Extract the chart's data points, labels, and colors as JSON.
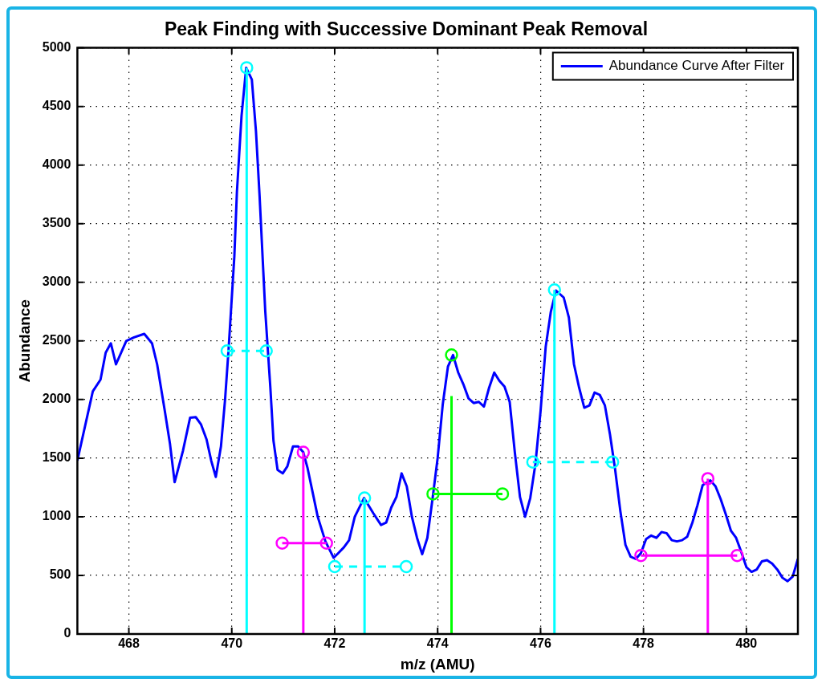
{
  "chart_data": {
    "type": "line",
    "title": "Peak Finding with Successive Dominant Peak Removal",
    "xlabel": "m/z (AMU)",
    "ylabel": "Abundance",
    "xlim": [
      467,
      481
    ],
    "xticks": [
      468,
      470,
      472,
      474,
      476,
      478,
      480
    ],
    "ylim": [
      0,
      5000
    ],
    "yticks": [
      0,
      500,
      1000,
      1500,
      2000,
      2500,
      3000,
      3500,
      4000,
      4500,
      5000
    ],
    "grid": true,
    "legend": "top right",
    "series": [
      {
        "name": "Abundance Curve After Filter",
        "type": "line",
        "color": "#0000ff",
        "marker": "none",
        "line_style": "solid",
        "x": [
          467.0,
          467.3,
          467.45,
          467.55,
          467.65,
          467.75,
          467.95,
          468.1,
          468.3,
          468.45,
          468.55,
          468.7,
          468.8,
          468.89,
          469.05,
          469.19,
          469.3,
          469.4,
          469.51,
          469.6,
          469.69,
          469.79,
          469.87,
          469.94,
          470.05,
          470.1,
          470.19,
          470.28,
          470.39,
          470.47,
          470.54,
          470.65,
          470.75,
          470.81,
          470.89,
          470.99,
          471.08,
          471.19,
          471.29,
          471.39,
          471.47,
          471.58,
          471.67,
          471.82,
          471.98,
          472.07,
          472.18,
          472.28,
          472.39,
          472.57,
          472.75,
          472.9,
          473.0,
          473.1,
          473.2,
          473.3,
          473.4,
          473.5,
          473.6,
          473.7,
          473.8,
          473.9,
          474.0,
          474.1,
          474.2,
          474.3,
          474.4,
          474.5,
          474.6,
          474.7,
          474.8,
          474.9,
          475.0,
          475.1,
          475.2,
          475.3,
          475.4,
          475.5,
          475.6,
          475.7,
          475.8,
          475.9,
          476.0,
          476.1,
          476.2,
          476.3,
          476.45,
          476.55,
          476.65,
          476.75,
          476.85,
          476.95,
          477.05,
          477.15,
          477.25,
          477.35,
          477.45,
          477.55,
          477.65,
          477.75,
          477.85,
          477.95,
          478.05,
          478.15,
          478.25,
          478.35,
          478.45,
          478.55,
          478.65,
          478.75,
          478.85,
          478.95,
          479.05,
          479.15,
          479.3,
          479.4,
          479.5,
          479.6,
          479.7,
          479.8,
          479.9,
          480.0,
          480.1,
          480.2,
          480.3,
          480.4,
          480.5,
          480.6,
          480.7,
          480.8,
          480.9,
          481.0
        ],
        "values": [
          1480,
          2070,
          2170,
          2400,
          2480,
          2300,
          2500,
          2530,
          2560,
          2480,
          2300,
          1900,
          1620,
          1295,
          1560,
          1845,
          1850,
          1790,
          1660,
          1480,
          1340,
          1600,
          2000,
          2440,
          3220,
          3770,
          4420,
          4830,
          4730,
          4290,
          3740,
          2760,
          2100,
          1650,
          1400,
          1370,
          1430,
          1600,
          1600,
          1550,
          1420,
          1190,
          1000,
          790,
          650,
          690,
          740,
          800,
          1000,
          1160,
          1030,
          930,
          950,
          1080,
          1170,
          1370,
          1260,
          1000,
          820,
          680,
          820,
          1150,
          1500,
          1960,
          2280,
          2380,
          2230,
          2130,
          2010,
          1970,
          1980,
          1940,
          2100,
          2230,
          2160,
          2110,
          1980,
          1550,
          1170,
          1000,
          1160,
          1450,
          1900,
          2450,
          2750,
          2930,
          2870,
          2700,
          2300,
          2100,
          1930,
          1950,
          2060,
          2040,
          1950,
          1700,
          1400,
          1050,
          760,
          660,
          640,
          690,
          810,
          840,
          820,
          870,
          860,
          800,
          790,
          800,
          830,
          950,
          1100,
          1270,
          1310,
          1260,
          1150,
          1020,
          880,
          820,
          700,
          570,
          530,
          550,
          620,
          630,
          600,
          550,
          480,
          450,
          490,
          640
        ]
      },
      {
        "type": "line",
        "color": "#00ffff",
        "marker": "none",
        "line_style": "solid",
        "x": [
          470.29,
          470.29
        ],
        "values": [
          0,
          4830
        ]
      },
      {
        "type": "scatter",
        "color": "#00ffff",
        "marker": "circle",
        "x": [
          470.29
        ],
        "values": [
          4830
        ]
      },
      {
        "type": "line",
        "color": "#00ffff",
        "marker": "circle",
        "line_style": "dashed",
        "x": [
          469.91,
          470.67
        ],
        "values": [
          2415,
          2415
        ]
      },
      {
        "type": "line",
        "color": "#ff00ff",
        "marker": "none",
        "line_style": "solid",
        "x": [
          471.39,
          471.39
        ],
        "values": [
          0,
          1550
        ]
      },
      {
        "type": "scatter",
        "color": "#ff00ff",
        "marker": "circle",
        "x": [
          471.39
        ],
        "values": [
          1550
        ]
      },
      {
        "type": "line",
        "color": "#ff00ff",
        "marker": "circle",
        "line_style": "solid",
        "x": [
          470.98,
          471.84
        ],
        "values": [
          775,
          775
        ]
      },
      {
        "type": "line",
        "color": "#00ffff",
        "marker": "none",
        "line_style": "solid",
        "x": [
          472.58,
          472.58
        ],
        "values": [
          0,
          1160
        ]
      },
      {
        "type": "scatter",
        "color": "#00ffff",
        "marker": "circle",
        "x": [
          472.58
        ],
        "values": [
          1160
        ]
      },
      {
        "type": "line",
        "color": "#00ffff",
        "marker": "circle",
        "line_style": "dashed",
        "x": [
          472.0,
          473.39
        ],
        "values": [
          575,
          575
        ]
      },
      {
        "type": "line",
        "color": "#00ff00",
        "marker": "none",
        "line_style": "solid",
        "x": [
          474.27,
          474.27
        ],
        "values": [
          0,
          2030
        ]
      },
      {
        "type": "scatter",
        "color": "#00ff00",
        "marker": "circle",
        "x": [
          474.27
        ],
        "values": [
          2380
        ]
      },
      {
        "type": "line",
        "color": "#00ff00",
        "marker": "circle",
        "line_style": "solid",
        "x": [
          473.91,
          475.26
        ],
        "values": [
          1195,
          1195
        ]
      },
      {
        "type": "line",
        "color": "#00ffff",
        "marker": "none",
        "line_style": "solid",
        "x": [
          476.27,
          476.27
        ],
        "values": [
          0,
          2935
        ]
      },
      {
        "type": "scatter",
        "color": "#00ffff",
        "marker": "circle",
        "x": [
          476.27
        ],
        "values": [
          2935
        ]
      },
      {
        "type": "line",
        "color": "#00ffff",
        "marker": "circle",
        "line_style": "dashed",
        "x": [
          475.85,
          477.4
        ],
        "values": [
          1467,
          1467
        ]
      },
      {
        "type": "line",
        "color": "#ff00ff",
        "marker": "none",
        "line_style": "solid",
        "x": [
          479.25,
          479.25
        ],
        "values": [
          0,
          1325
        ]
      },
      {
        "type": "scatter",
        "color": "#ff00ff",
        "marker": "circle",
        "x": [
          479.25
        ],
        "values": [
          1325
        ]
      },
      {
        "type": "line",
        "color": "#ff00ff",
        "marker": "circle",
        "line_style": "solid",
        "x": [
          477.95,
          479.82
        ],
        "values": [
          670,
          670
        ]
      }
    ]
  }
}
